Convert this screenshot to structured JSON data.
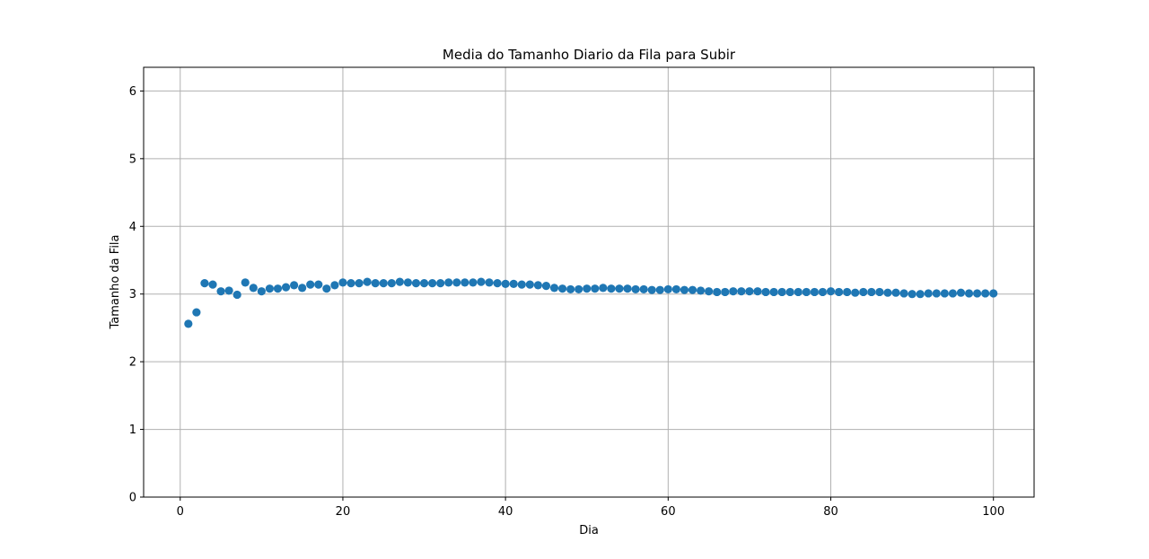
{
  "chart_data": {
    "type": "scatter",
    "title": "Media do Tamanho Diario da Fila para Subir",
    "xlabel": "Dia",
    "ylabel": "Tamanho da Fila",
    "xlim": [
      -4.5,
      105
    ],
    "ylim": [
      0,
      6.35
    ],
    "xticks": [
      0,
      20,
      40,
      60,
      80,
      100
    ],
    "yticks": [
      0,
      1,
      2,
      3,
      4,
      5,
      6
    ],
    "grid": true,
    "marker_color": "#1f77b4",
    "series": [
      {
        "name": "Tamanho da Fila",
        "x": [
          1,
          2,
          3,
          4,
          5,
          6,
          7,
          8,
          9,
          10,
          11,
          12,
          13,
          14,
          15,
          16,
          17,
          18,
          19,
          20,
          21,
          22,
          23,
          24,
          25,
          26,
          27,
          28,
          29,
          30,
          31,
          32,
          33,
          34,
          35,
          36,
          37,
          38,
          39,
          40,
          41,
          42,
          43,
          44,
          45,
          46,
          47,
          48,
          49,
          50,
          51,
          52,
          53,
          54,
          55,
          56,
          57,
          58,
          59,
          60,
          61,
          62,
          63,
          64,
          65,
          66,
          67,
          68,
          69,
          70,
          71,
          72,
          73,
          74,
          75,
          76,
          77,
          78,
          79,
          80,
          81,
          82,
          83,
          84,
          85,
          86,
          87,
          88,
          89,
          90,
          91,
          92,
          93,
          94,
          95,
          96,
          97,
          98,
          99,
          100
        ],
        "y": [
          2.56,
          2.73,
          3.16,
          3.14,
          3.04,
          3.05,
          2.99,
          3.17,
          3.09,
          3.04,
          3.08,
          3.08,
          3.1,
          3.13,
          3.09,
          3.14,
          3.14,
          3.08,
          3.13,
          3.17,
          3.16,
          3.16,
          3.18,
          3.16,
          3.16,
          3.16,
          3.18,
          3.17,
          3.16,
          3.16,
          3.16,
          3.16,
          3.17,
          3.17,
          3.17,
          3.17,
          3.18,
          3.17,
          3.16,
          3.15,
          3.15,
          3.14,
          3.14,
          3.13,
          3.12,
          3.09,
          3.08,
          3.07,
          3.07,
          3.08,
          3.08,
          3.09,
          3.08,
          3.08,
          3.08,
          3.07,
          3.07,
          3.06,
          3.06,
          3.07,
          3.07,
          3.06,
          3.06,
          3.05,
          3.04,
          3.03,
          3.03,
          3.04,
          3.04,
          3.04,
          3.04,
          3.03,
          3.03,
          3.03,
          3.03,
          3.03,
          3.03,
          3.03,
          3.03,
          3.04,
          3.03,
          3.03,
          3.02,
          3.03,
          3.03,
          3.03,
          3.02,
          3.02,
          3.01,
          3.0,
          3.0,
          3.01,
          3.01,
          3.01,
          3.01,
          3.02,
          3.01,
          3.01,
          3.01,
          3.01
        ]
      }
    ]
  }
}
